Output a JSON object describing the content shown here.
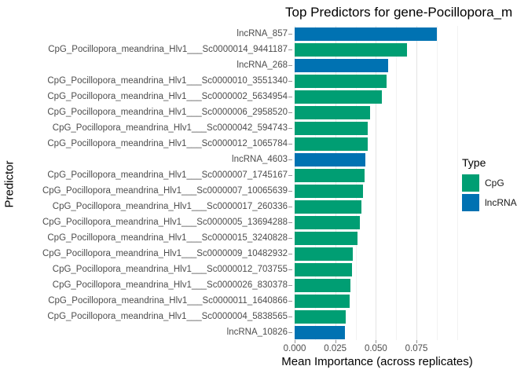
{
  "title": "Top Predictors for gene-Pocillopora_m",
  "axes": {
    "x_label": "Mean Importance (across replicates)",
    "y_label": "Predictor",
    "x_tick_labels": [
      "0.000",
      "0.025",
      "0.050",
      "0.075"
    ]
  },
  "legend": {
    "title": "Type",
    "items": [
      {
        "label": "CpG",
        "color": "#009E73"
      },
      {
        "label": "lncRNA",
        "color": "#0072B2"
      }
    ]
  },
  "colors": {
    "cpg": "#009E73",
    "lncrna": "#0072B2",
    "grid_major": "#e4e4e4",
    "grid_minor": "#f2f2f2",
    "tick": "#979797",
    "axis_text": "#4d4d4d",
    "title_text": "#000000"
  },
  "chart_data": {
    "type": "bar",
    "orientation": "horizontal",
    "title": "Top Predictors for gene-Pocillopora_m",
    "xlabel": "Mean Importance (across replicates)",
    "ylabel": "Predictor",
    "xlim": [
      0,
      0.101
    ],
    "x_major_ticks": [
      0,
      0.025,
      0.05,
      0.075
    ],
    "x_minor_ticks": [
      0.0125,
      0.0375,
      0.0625,
      0.0875,
      0.1
    ],
    "grid": "vertical-only",
    "legend_position": "right",
    "series_colors": {
      "CpG": "#009E73",
      "lncRNA": "#0072B2"
    },
    "bars": [
      {
        "label": "lncRNA_857",
        "type": "lncRNA",
        "value": 0.0875
      },
      {
        "label": "CpG_Pocillopora_meandrina_Hlv1___Sc0000014_9441187",
        "type": "CpG",
        "value": 0.0693
      },
      {
        "label": "lncRNA_268",
        "type": "lncRNA",
        "value": 0.0574
      },
      {
        "label": "CpG_Pocillopora_meandrina_Hlv1___Sc0000010_3551340",
        "type": "CpG",
        "value": 0.0566
      },
      {
        "label": "CpG_Pocillopora_meandrina_Hlv1___Sc0000002_5634954",
        "type": "CpG",
        "value": 0.0535
      },
      {
        "label": "CpG_Pocillopora_meandrina_Hlv1___Sc0000006_2958520",
        "type": "CpG",
        "value": 0.0463
      },
      {
        "label": "CpG_Pocillopora_meandrina_Hlv1___Sc0000042_594743",
        "type": "CpG",
        "value": 0.0451
      },
      {
        "label": "CpG_Pocillopora_meandrina_Hlv1___Sc0000012_1065784",
        "type": "CpG",
        "value": 0.0449
      },
      {
        "label": "lncRNA_4603",
        "type": "lncRNA",
        "value": 0.0435
      },
      {
        "label": "CpG_Pocillopora_meandrina_Hlv1___Sc0000007_1745167",
        "type": "CpG",
        "value": 0.0432
      },
      {
        "label": "CpG_Pocillopora_meandrina_Hlv1___Sc0000007_10065639",
        "type": "CpG",
        "value": 0.0422
      },
      {
        "label": "CpG_Pocillopora_meandrina_Hlv1___Sc0000017_260336",
        "type": "CpG",
        "value": 0.0411
      },
      {
        "label": "CpG_Pocillopora_meandrina_Hlv1___Sc0000005_13694288",
        "type": "CpG",
        "value": 0.04
      },
      {
        "label": "CpG_Pocillopora_meandrina_Hlv1___Sc0000015_3240828",
        "type": "CpG",
        "value": 0.0389
      },
      {
        "label": "CpG_Pocillopora_meandrina_Hlv1___Sc0000009_10482932",
        "type": "CpG",
        "value": 0.0357
      },
      {
        "label": "CpG_Pocillopora_meandrina_Hlv1___Sc0000012_703755",
        "type": "CpG",
        "value": 0.0352
      },
      {
        "label": "CpG_Pocillopora_meandrina_Hlv1___Sc0000026_830378",
        "type": "CpG",
        "value": 0.0342
      },
      {
        "label": "CpG_Pocillopora_meandrina_Hlv1___Sc0000011_1640866",
        "type": "CpG",
        "value": 0.0338
      },
      {
        "label": "CpG_Pocillopora_meandrina_Hlv1___Sc0000004_5838565",
        "type": "CpG",
        "value": 0.0314
      },
      {
        "label": "lncRNA_10826",
        "type": "lncRNA",
        "value": 0.0311
      }
    ]
  }
}
